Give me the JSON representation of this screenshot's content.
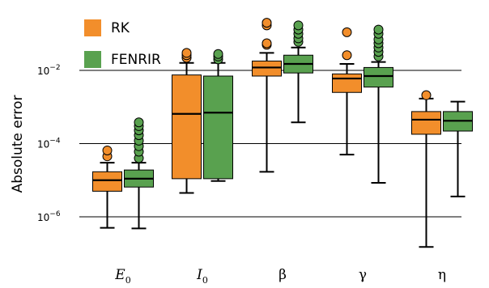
{
  "chart_data": {
    "type": "box",
    "ylabel": "Absolute error",
    "yscale": "log",
    "yticks": [
      {
        "value": 1e-06,
        "base": "10",
        "exp": "−6"
      },
      {
        "value": 0.0001,
        "base": "10",
        "exp": "−4"
      },
      {
        "value": 0.01,
        "base": "10",
        "exp": "−2"
      }
    ],
    "ylim": [
      2.2e-08,
      0.12
    ],
    "grid": "horizontal at major ticks",
    "legend_position": "top-left",
    "categories": [
      {
        "main": "E",
        "sub": "0",
        "greek": false
      },
      {
        "main": "I",
        "sub": "0",
        "greek": false
      },
      {
        "main": "β",
        "sub": "",
        "greek": true
      },
      {
        "main": "γ",
        "sub": "",
        "greek": true
      },
      {
        "main": "η",
        "sub": "",
        "greek": true
      }
    ],
    "series": [
      {
        "name": "RK",
        "color": "#f28e2b",
        "boxes": [
          {
            "whisker_low": 5e-07,
            "q1": 5e-06,
            "median": 1e-05,
            "q3": 1.7e-05,
            "whisker_high": 3e-05,
            "outliers": [
              4.5e-05,
              6.5e-05
            ]
          },
          {
            "whisker_low": 4.5e-06,
            "q1": 1.1e-05,
            "median": 0.00065,
            "q3": 0.0075,
            "whisker_high": 0.016,
            "outliers": [
              0.022,
              0.026,
              0.03
            ]
          },
          {
            "whisker_low": 1.7e-05,
            "q1": 0.007,
            "median": 0.012,
            "q3": 0.018,
            "whisker_high": 0.03,
            "outliers": [
              0.05,
              0.055,
              0.17,
              0.2
            ]
          },
          {
            "whisker_low": 5e-05,
            "q1": 0.0025,
            "median": 0.006,
            "q3": 0.008,
            "whisker_high": 0.015,
            "outliers": [
              0.026,
              0.11
            ]
          },
          {
            "whisker_low": 1.5e-07,
            "q1": 0.00018,
            "median": 0.00045,
            "q3": 0.00075,
            "whisker_high": 0.0017,
            "outliers": [
              0.0021
            ]
          }
        ]
      },
      {
        "name": "FENRIR",
        "color": "#59a14f",
        "boxes": [
          {
            "whisker_low": 4.8e-07,
            "q1": 6.5e-06,
            "median": 1.1e-05,
            "q3": 1.9e-05,
            "whisker_high": 3e-05,
            "outliers": [
              4e-05,
              6e-05,
              8.5e-05,
              0.00012,
              0.00017,
              0.00023,
              0.0003,
              0.00038
            ]
          },
          {
            "whisker_low": 9.5e-06,
            "q1": 1.1e-05,
            "median": 0.0007,
            "q3": 0.007,
            "whisker_high": 0.016,
            "outliers": [
              0.02,
              0.024,
              0.028
            ]
          },
          {
            "whisker_low": 0.00038,
            "q1": 0.0085,
            "median": 0.015,
            "q3": 0.026,
            "whisker_high": 0.042,
            "outliers": [
              0.06,
              0.075,
              0.1,
              0.13,
              0.17
            ]
          },
          {
            "whisker_low": 8.5e-06,
            "q1": 0.0035,
            "median": 0.007,
            "q3": 0.012,
            "whisker_high": 0.017,
            "outliers": [
              0.024,
              0.032,
              0.042,
              0.055,
              0.07,
              0.1,
              0.13
            ]
          },
          {
            "whisker_low": 3.6e-06,
            "q1": 0.00022,
            "median": 0.00042,
            "q3": 0.00075,
            "whisker_high": 0.0014,
            "outliers": []
          }
        ]
      }
    ]
  }
}
